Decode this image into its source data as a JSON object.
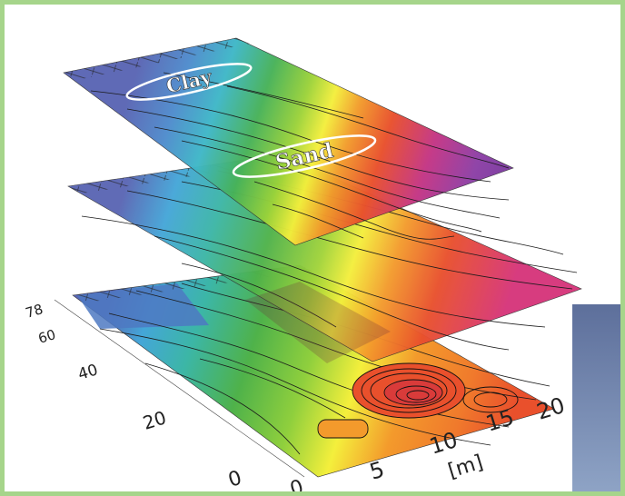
{
  "layers": [
    {
      "name": "top",
      "labels": [
        "Clay",
        "Sand"
      ]
    },
    {
      "name": "middle",
      "labels": []
    },
    {
      "name": "bottom",
      "labels": []
    }
  ],
  "axes": {
    "left_ticks": [
      "0",
      "20",
      "40",
      "60",
      "78"
    ],
    "front_ticks": [
      "0",
      "5",
      "10",
      "15",
      "20"
    ],
    "unit": "[m]"
  },
  "colors": {
    "frame": "#a6d58b",
    "side_panel_top": "#5d6f9b",
    "side_panel_bottom": "#8fa4c6",
    "scale": [
      "#5a66b4",
      "#44a6d8",
      "#38b8b5",
      "#4fb24a",
      "#8fcf3d",
      "#f4ef3c",
      "#f39a2c",
      "#e9502c",
      "#d6357a",
      "#8d3fa6"
    ]
  }
}
